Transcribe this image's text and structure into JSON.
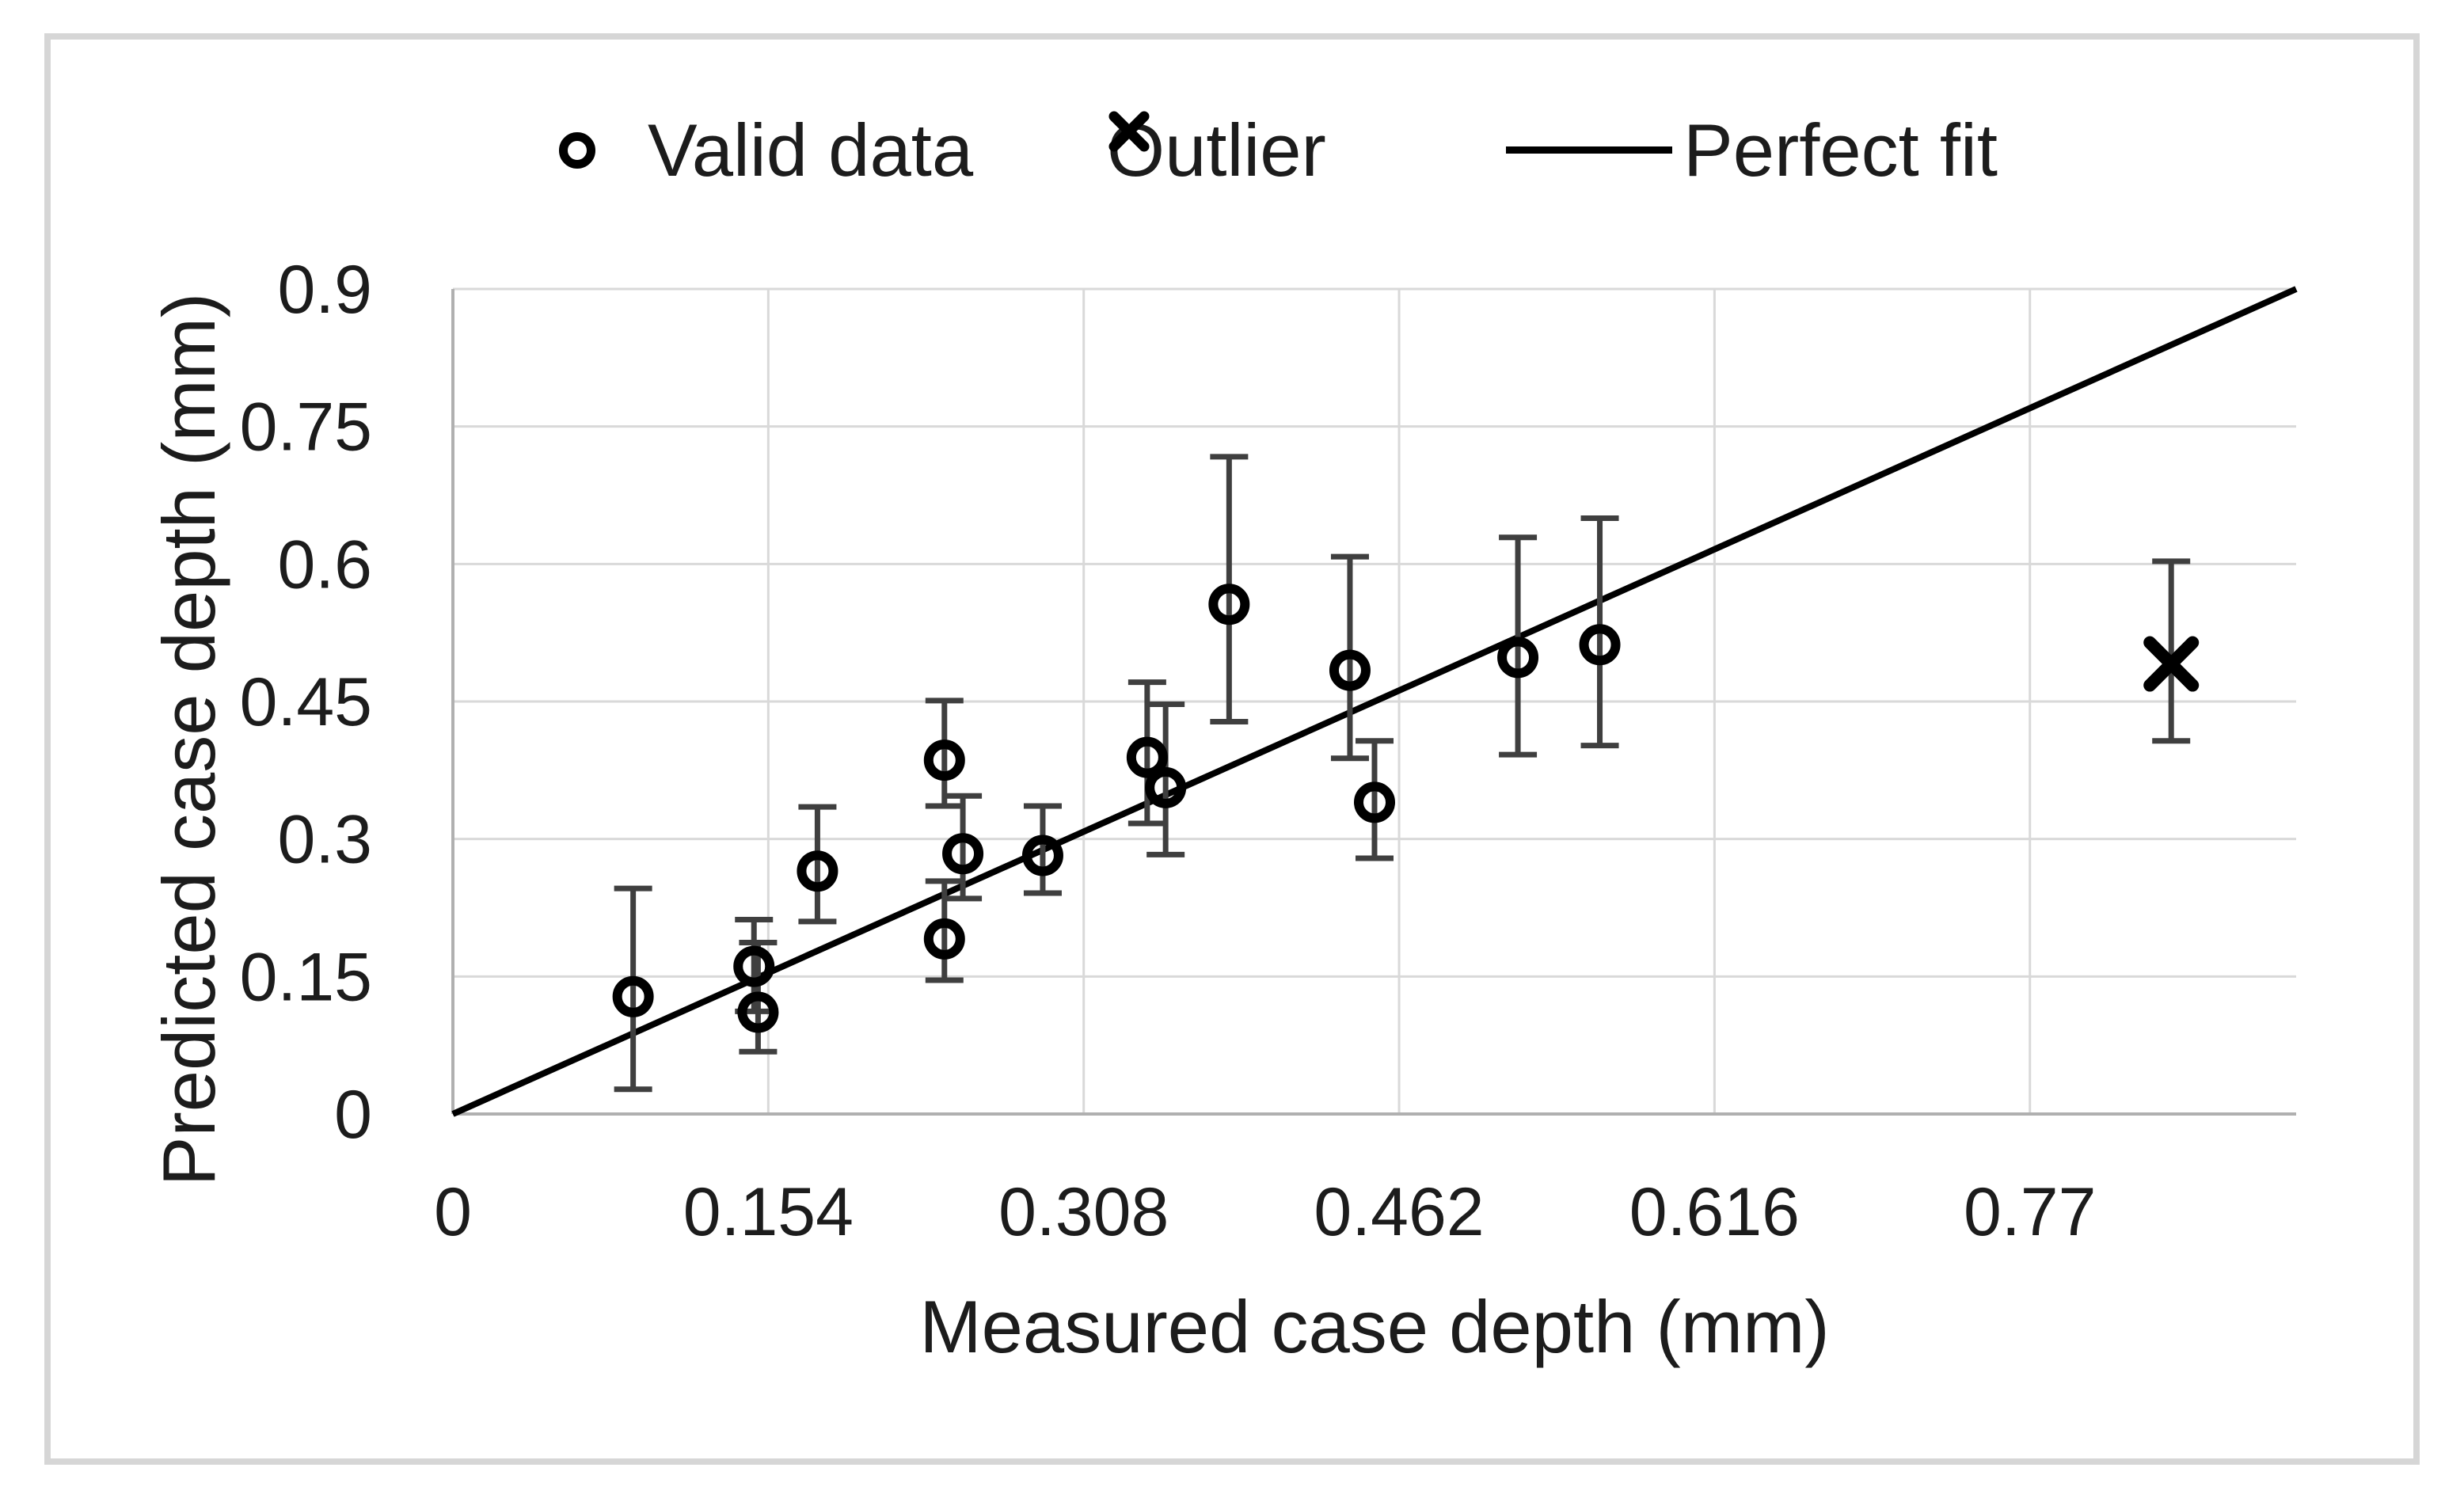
{
  "figure": {
    "background": "#ffffff",
    "border_color": "#d6d6d6"
  },
  "chart_data": {
    "type": "scatter",
    "xlabel": "Measured case depth (mm)",
    "ylabel": "Predicted case depth (mm)",
    "xlim": [
      0,
      0.9
    ],
    "ylim": [
      0,
      0.9
    ],
    "grid": true,
    "x_ticks": {
      "values": [
        0,
        0.154,
        0.308,
        0.462,
        0.616,
        0.77
      ],
      "labels": [
        "0",
        "0.154",
        "0.308",
        "0.462",
        "0.616",
        "0.77"
      ]
    },
    "y_ticks": {
      "values": [
        0,
        0.15,
        0.3,
        0.45,
        0.6,
        0.75,
        0.9
      ],
      "labels": [
        "0",
        "0.15",
        "0.3",
        "0.45",
        "0.6",
        "0.75",
        "0.9"
      ]
    },
    "legend": {
      "position": "top",
      "items": [
        {
          "label": "Valid data",
          "marker": "circle"
        },
        {
          "label": "Outlier",
          "marker": "x"
        },
        {
          "label": "Perfect fit",
          "marker": "line"
        }
      ]
    },
    "series": [
      {
        "name": "Valid data",
        "marker": "circle",
        "points": [
          {
            "x": 0.088,
            "y": 0.128,
            "err_lo": 0.027,
            "err_hi": 0.246
          },
          {
            "x": 0.147,
            "y": 0.161,
            "err_lo": 0.112,
            "err_hi": 0.212
          },
          {
            "x": 0.149,
            "y": 0.111,
            "err_lo": 0.068,
            "err_hi": 0.187
          },
          {
            "x": 0.178,
            "y": 0.265,
            "err_lo": 0.21,
            "err_hi": 0.335
          },
          {
            "x": 0.24,
            "y": 0.386,
            "err_lo": 0.336,
            "err_hi": 0.451
          },
          {
            "x": 0.249,
            "y": 0.284,
            "err_lo": 0.235,
            "err_hi": 0.347
          },
          {
            "x": 0.24,
            "y": 0.191,
            "err_lo": 0.146,
            "err_hi": 0.254
          },
          {
            "x": 0.288,
            "y": 0.282,
            "err_lo": 0.241,
            "err_hi": 0.336
          },
          {
            "x": 0.339,
            "y": 0.389,
            "err_lo": 0.317,
            "err_hi": 0.471
          },
          {
            "x": 0.348,
            "y": 0.356,
            "err_lo": 0.283,
            "err_hi": 0.447
          },
          {
            "x": 0.379,
            "y": 0.556,
            "err_lo": 0.428,
            "err_hi": 0.717
          },
          {
            "x": 0.438,
            "y": 0.484,
            "err_lo": 0.388,
            "err_hi": 0.608
          },
          {
            "x": 0.45,
            "y": 0.34,
            "err_lo": 0.279,
            "err_hi": 0.407
          },
          {
            "x": 0.52,
            "y": 0.498,
            "err_lo": 0.392,
            "err_hi": 0.629
          },
          {
            "x": 0.56,
            "y": 0.512,
            "err_lo": 0.402,
            "err_hi": 0.65
          }
        ]
      },
      {
        "name": "Outlier",
        "marker": "x",
        "points": [
          {
            "x": 0.839,
            "y": 0.491,
            "err_lo": 0.407,
            "err_hi": 0.603
          }
        ]
      },
      {
        "name": "Perfect fit",
        "marker": "line",
        "line": {
          "x1": 0,
          "y1": 0,
          "x2": 0.9,
          "y2": 0.9
        }
      }
    ],
    "colors": {
      "marker": "#000000",
      "fit_line": "#000000",
      "error_bar": "#3f3f3f",
      "gridline": "#d9d9d9",
      "axis_line": "#b0b0b0",
      "text": "#1c1c1c"
    }
  }
}
